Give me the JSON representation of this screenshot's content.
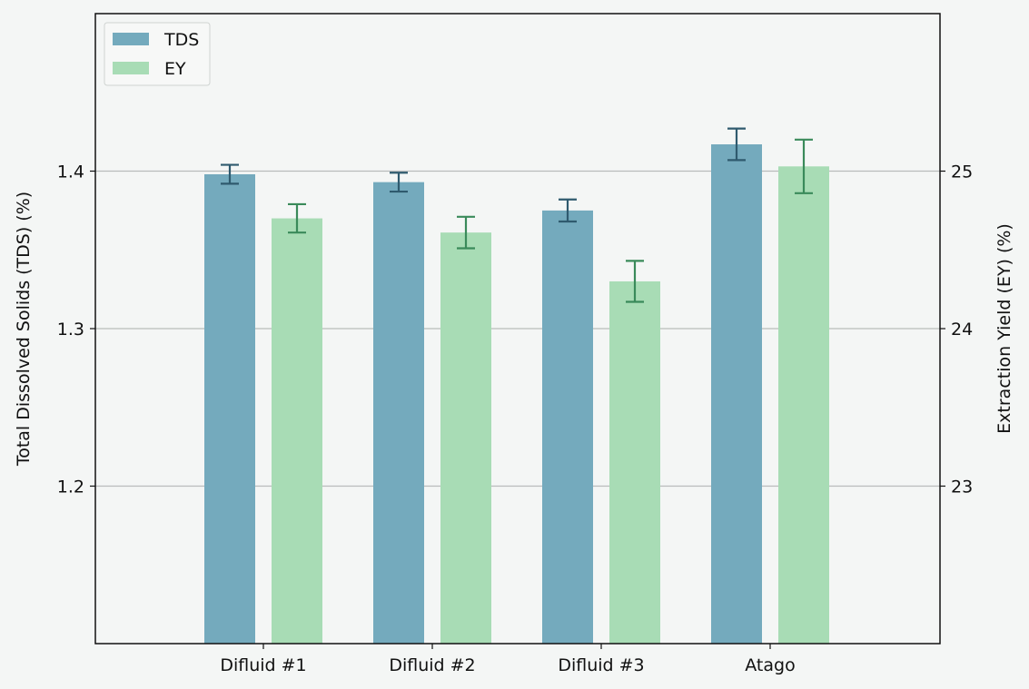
{
  "chart_data": {
    "type": "bar",
    "categories": [
      "Difluid #1",
      "Difluid #2",
      "Difluid #3",
      "Atago"
    ],
    "series": [
      {
        "name": "TDS",
        "axis": "left",
        "values": [
          1.398,
          1.393,
          1.375,
          1.417
        ],
        "errors": [
          0.006,
          0.006,
          0.007,
          0.01
        ],
        "color": "#74aabd",
        "error_color": "#2f5a6e"
      },
      {
        "name": "EY",
        "axis": "right",
        "values": [
          24.7,
          24.61,
          24.3,
          25.03
        ],
        "errors": [
          0.09,
          0.1,
          0.13,
          0.17
        ],
        "color": "#a8dcb5",
        "error_color": "#3a8a5a"
      }
    ],
    "ylabel": "Total Dissolved Solids (TDS) (%)",
    "ylabel_right": "Extraction Yield (EY) (%)",
    "ylim": [
      1.1,
      1.5
    ],
    "ylim_right": [
      22.0,
      26.0
    ],
    "yticks": [
      "1.2",
      "1.3",
      "1.4"
    ],
    "yticks_right": [
      "23",
      "24",
      "25"
    ],
    "grid": "horizontal",
    "legend_position": "top-left"
  }
}
